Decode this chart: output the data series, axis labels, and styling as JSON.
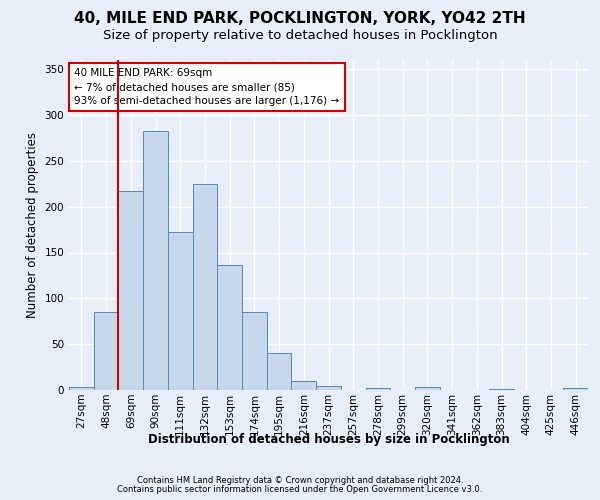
{
  "title1": "40, MILE END PARK, POCKLINGTON, YORK, YO42 2TH",
  "title2": "Size of property relative to detached houses in Pocklington",
  "xlabel": "Distribution of detached houses by size in Pocklington",
  "ylabel": "Number of detached properties",
  "bin_labels": [
    "27sqm",
    "48sqm",
    "69sqm",
    "90sqm",
    "111sqm",
    "132sqm",
    "153sqm",
    "174sqm",
    "195sqm",
    "216sqm",
    "237sqm",
    "257sqm",
    "278sqm",
    "299sqm",
    "320sqm",
    "341sqm",
    "362sqm",
    "383sqm",
    "404sqm",
    "425sqm",
    "446sqm"
  ],
  "bar_values": [
    3,
    85,
    217,
    283,
    172,
    225,
    136,
    85,
    40,
    10,
    4,
    0,
    2,
    0,
    3,
    0,
    0,
    1,
    0,
    0,
    2
  ],
  "bar_color": "#c8d8ea",
  "bar_edge_color": "#5588bb",
  "annotation_title": "40 MILE END PARK: 69sqm",
  "annotation_line1": "← 7% of detached houses are smaller (85)",
  "annotation_line2": "93% of semi-detached houses are larger (1,176) →",
  "footer1": "Contains HM Land Registry data © Crown copyright and database right 2024.",
  "footer2": "Contains public sector information licensed under the Open Government Licence v3.0.",
  "ylim": [
    0,
    360
  ],
  "yticks": [
    0,
    50,
    100,
    150,
    200,
    250,
    300,
    350
  ],
  "bg_color": "#e8eef8",
  "red_line_color": "#cc0000",
  "title1_fontsize": 11,
  "title2_fontsize": 9.5,
  "tick_fontsize": 7.5,
  "ylabel_fontsize": 8.5,
  "xlabel_fontsize": 8.5,
  "red_line_index": 2
}
